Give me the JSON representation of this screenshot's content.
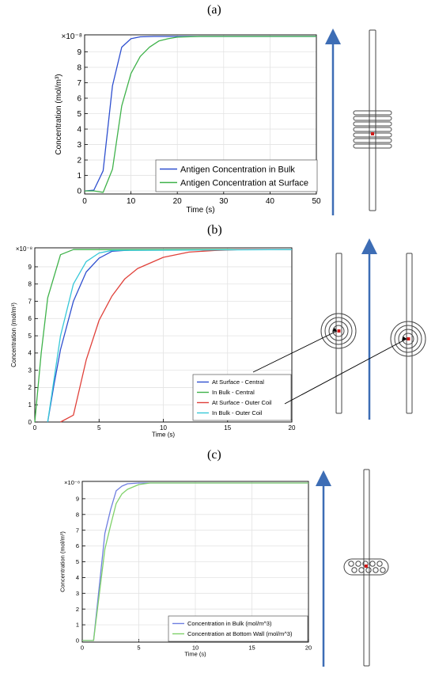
{
  "panels": [
    {
      "label": "(a)"
    },
    {
      "label": "(b)"
    },
    {
      "label": "(c)"
    }
  ],
  "colors": {
    "blue": "#2e4fcf",
    "green": "#3fb24a",
    "red": "#e0413a",
    "cyan": "#36c8d8",
    "arrow": "#3d6db5",
    "marker": "#d01818"
  },
  "chart_data": [
    {
      "type": "line",
      "xlabel": "Time (s)",
      "ylabel": "Concentration (mol/m³)",
      "multiplier": "×10⁻⁸",
      "xlim": [
        0,
        50
      ],
      "ylim": [
        -0.2,
        10.1
      ],
      "xticks": [
        "0",
        "10",
        "20",
        "30",
        "40",
        "50"
      ],
      "yticks": [
        "0",
        "1",
        "2",
        "3",
        "4",
        "5",
        "6",
        "7",
        "8",
        "9"
      ],
      "legend_position": "bottom-right",
      "series": [
        {
          "name": "Antigen Concentration in Bulk",
          "color": "#2e4fcf",
          "x": [
            0,
            2,
            4,
            6,
            8,
            10,
            12,
            15,
            20,
            50
          ],
          "y": [
            0,
            0.05,
            1.3,
            6.8,
            9.3,
            9.85,
            9.97,
            10.0,
            10.0,
            10.0
          ]
        },
        {
          "name": "Antigen Concentration at Surface",
          "color": "#3fb24a",
          "x": [
            0,
            2,
            4,
            6,
            8,
            10,
            12,
            14,
            16,
            18,
            20,
            25,
            50
          ],
          "y": [
            0,
            0,
            -0.1,
            1.4,
            5.5,
            7.6,
            8.7,
            9.3,
            9.7,
            9.85,
            9.95,
            10.0,
            10.0
          ]
        }
      ]
    },
    {
      "type": "line",
      "xlabel": "Time (s)",
      "ylabel": "Concentration (mol/m³)",
      "multiplier": "×10⁻⁸",
      "xlim": [
        0,
        20
      ],
      "ylim": [
        0,
        10.1
      ],
      "xticks": [
        "0",
        "5",
        "10",
        "15",
        "20"
      ],
      "yticks": [
        "0",
        "1",
        "2",
        "3",
        "4",
        "5",
        "6",
        "7",
        "8",
        "9"
      ],
      "legend_position": "bottom-right",
      "series": [
        {
          "name": "At Surface - Central",
          "color": "#2e4fcf",
          "x": [
            1,
            1.5,
            2,
            3,
            4,
            5,
            6,
            8,
            20
          ],
          "y": [
            0,
            2.2,
            4.2,
            7.0,
            8.7,
            9.5,
            9.9,
            10.0,
            10.0
          ]
        },
        {
          "name": "In Bulk - Central",
          "color": "#3fb24a",
          "x": [
            0,
            0.5,
            1,
            2,
            3,
            4,
            20
          ],
          "y": [
            0,
            4.0,
            7.2,
            9.7,
            10.0,
            10.0,
            10.0
          ]
        },
        {
          "name": "At Surface - Outer Coil",
          "color": "#e0413a",
          "x": [
            2,
            3,
            4,
            5,
            6,
            7,
            8,
            10,
            12,
            14,
            16,
            20
          ],
          "y": [
            0,
            0.4,
            3.6,
            5.9,
            7.3,
            8.3,
            8.9,
            9.55,
            9.85,
            9.95,
            10.0,
            10.0
          ]
        },
        {
          "name": "In Bulk - Outer Coil",
          "color": "#36c8d8",
          "x": [
            1,
            1.5,
            2,
            3,
            4,
            5,
            6,
            20
          ],
          "y": [
            0,
            2.5,
            5.0,
            8.0,
            9.3,
            9.8,
            9.95,
            10.0
          ]
        }
      ]
    },
    {
      "type": "line",
      "xlabel": "Time (s)",
      "ylabel": "Concentration (mol/m³)",
      "multiplier": "×10⁻⁸",
      "xlim": [
        0,
        20
      ],
      "ylim": [
        -0.1,
        10.1
      ],
      "xticks": [
        "0",
        "5",
        "10",
        "15",
        "20"
      ],
      "yticks": [
        "0",
        "1",
        "2",
        "3",
        "4",
        "5",
        "6",
        "7",
        "8",
        "9"
      ],
      "legend_position": "bottom-right",
      "series": [
        {
          "name": "Concentration in Bulk (mol/m^3)",
          "color": "#6f7fe0",
          "x": [
            0,
            1,
            2,
            2.5,
            3,
            3.5,
            4,
            5,
            20
          ],
          "y": [
            0,
            0,
            6.8,
            8.3,
            9.5,
            9.8,
            9.95,
            10.0,
            10.0
          ]
        },
        {
          "name": "Concentration at Bottom Wall (mol/m^3)",
          "color": "#7fd16a",
          "x": [
            0,
            1,
            2,
            2.5,
            3,
            3.5,
            4,
            5,
            6,
            20
          ],
          "y": [
            0,
            0,
            5.8,
            7.3,
            8.7,
            9.3,
            9.6,
            9.9,
            10.0,
            10.0
          ]
        }
      ]
    }
  ]
}
